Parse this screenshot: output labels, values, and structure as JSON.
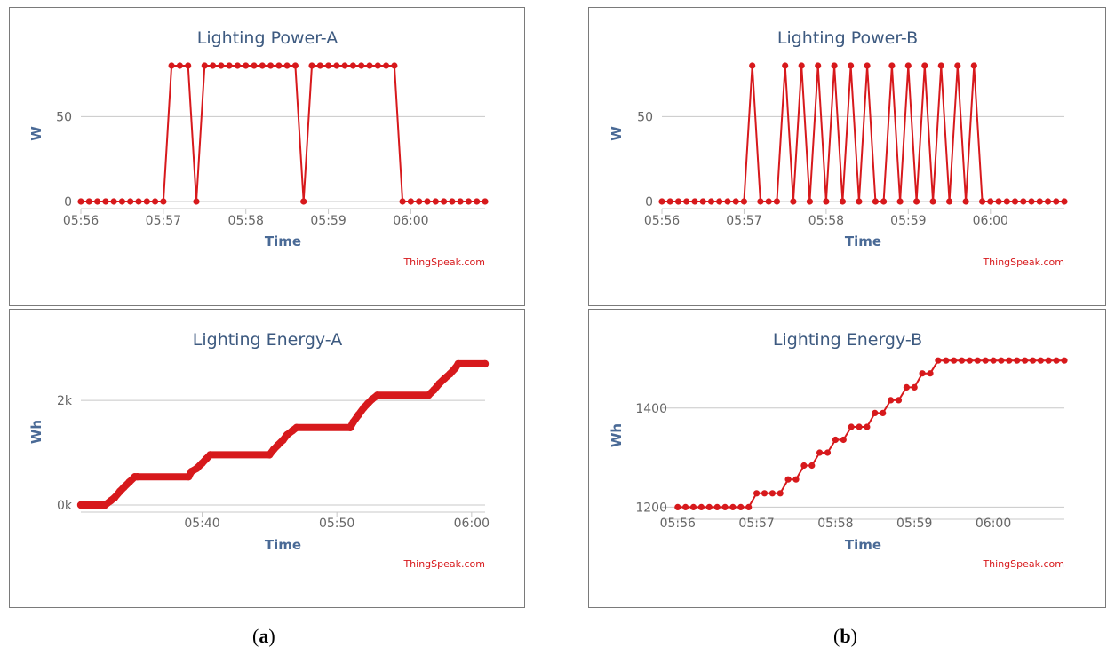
{
  "captions": {
    "a_open": "(",
    "a_letter": "a",
    "a_close": ")",
    "b_open": "(",
    "b_letter": "b",
    "b_close": ")"
  },
  "colors": {
    "series": "#d7191c",
    "grid": "#c8c8c8",
    "title": "#3d5a80"
  },
  "chart_data": [
    {
      "id": "power-a",
      "type": "line",
      "title": "Lighting Power-A",
      "xlabel": "Time",
      "ylabel": "W",
      "credit": "ThingSpeak.com",
      "xlim": [
        0,
        294
      ],
      "ylim": [
        0,
        80
      ],
      "xticks": [
        {
          "v": 0,
          "label": "05:56"
        },
        {
          "v": 60,
          "label": "05:57"
        },
        {
          "v": 120,
          "label": "05:58"
        },
        {
          "v": 180,
          "label": "05:59"
        },
        {
          "v": 240,
          "label": "06:00"
        }
      ],
      "yticks": [
        {
          "v": 0,
          "label": "0"
        },
        {
          "v": 50,
          "label": "50"
        }
      ],
      "x": [
        0,
        6,
        12,
        18,
        24,
        30,
        36,
        42,
        48,
        54,
        60,
        66,
        72,
        78,
        84,
        90,
        96,
        102,
        108,
        114,
        120,
        126,
        132,
        138,
        144,
        150,
        156,
        162,
        168,
        174,
        180,
        186,
        192,
        198,
        204,
        210,
        216,
        222,
        228,
        234,
        240,
        246,
        252,
        258,
        264,
        270,
        276,
        282,
        288,
        294
      ],
      "series": [
        {
          "name": "Lighting Power-A",
          "values": [
            0,
            0,
            0,
            0,
            0,
            0,
            0,
            0,
            0,
            0,
            0,
            80,
            80,
            80,
            0,
            80,
            80,
            80,
            80,
            80,
            80,
            80,
            80,
            80,
            80,
            80,
            80,
            0,
            80,
            80,
            80,
            80,
            80,
            80,
            80,
            80,
            80,
            80,
            80,
            0,
            0,
            0,
            0,
            0,
            0,
            0,
            0,
            0,
            0,
            0
          ]
        }
      ]
    },
    {
      "id": "power-b",
      "type": "line",
      "title": "Lighting Power-B",
      "xlabel": "Time",
      "ylabel": "W",
      "credit": "ThingSpeak.com",
      "xlim": [
        0,
        294
      ],
      "ylim": [
        0,
        80
      ],
      "xticks": [
        {
          "v": 0,
          "label": "05:56"
        },
        {
          "v": 60,
          "label": "05:57"
        },
        {
          "v": 120,
          "label": "05:58"
        },
        {
          "v": 180,
          "label": "05:59"
        },
        {
          "v": 240,
          "label": "06:00"
        }
      ],
      "yticks": [
        {
          "v": 0,
          "label": "0"
        },
        {
          "v": 50,
          "label": "50"
        }
      ],
      "x": [
        0,
        6,
        12,
        18,
        24,
        30,
        36,
        42,
        48,
        54,
        60,
        66,
        72,
        78,
        84,
        90,
        96,
        102,
        108,
        114,
        120,
        126,
        132,
        138,
        144,
        150,
        156,
        162,
        168,
        174,
        180,
        186,
        192,
        198,
        204,
        210,
        216,
        222,
        228,
        234,
        240,
        246,
        252,
        258,
        264,
        270,
        276,
        282,
        288,
        294
      ],
      "series": [
        {
          "name": "Lighting Power-B",
          "values": [
            0,
            0,
            0,
            0,
            0,
            0,
            0,
            0,
            0,
            0,
            0,
            80,
            0,
            0,
            0,
            80,
            0,
            80,
            0,
            80,
            0,
            80,
            0,
            80,
            0,
            80,
            0,
            0,
            80,
            0,
            80,
            0,
            80,
            0,
            80,
            0,
            80,
            0,
            80,
            0,
            0,
            0,
            0,
            0,
            0,
            0,
            0,
            0,
            0,
            0
          ]
        }
      ]
    },
    {
      "id": "energy-a",
      "type": "line",
      "title": "Lighting Energy-A",
      "xlabel": "Time",
      "ylabel": "Wh",
      "credit": "ThingSpeak.com",
      "xlim": [
        31,
        61
      ],
      "ylim": [
        0,
        2800
      ],
      "xticks": [
        {
          "v": 40,
          "label": "05:40"
        },
        {
          "v": 50,
          "label": "05:50"
        },
        {
          "v": 60,
          "label": "06:00"
        }
      ],
      "yticks": [
        {
          "v": 0,
          "label": "0k"
        },
        {
          "v": 2000,
          "label": "2k"
        }
      ],
      "x": [
        31,
        32.8,
        33.2,
        33.5,
        33.9,
        34.2,
        34.6,
        35,
        35.2,
        39,
        39.2,
        39.6,
        40,
        40.3,
        40.6,
        45,
        45.3,
        45.6,
        46,
        46.3,
        46.7,
        47,
        51,
        51.2,
        51.6,
        52,
        52.3,
        52.6,
        53,
        56.8,
        57.2,
        57.6,
        58,
        58.4,
        58.8,
        59,
        61
      ],
      "series": [
        {
          "name": "Lighting Energy-A",
          "values": [
            0,
            0,
            80,
            140,
            260,
            340,
            440,
            540,
            540,
            540,
            640,
            700,
            800,
            880,
            960,
            960,
            1060,
            1140,
            1240,
            1340,
            1420,
            1480,
            1480,
            1580,
            1720,
            1860,
            1940,
            2020,
            2100,
            2100,
            2200,
            2320,
            2420,
            2510,
            2620,
            2700,
            2700
          ]
        }
      ]
    },
    {
      "id": "energy-b",
      "type": "line",
      "title": "Lighting Energy-B",
      "xlabel": "Time",
      "ylabel": "Wh",
      "credit": "ThingSpeak.com",
      "xlim": [
        -12,
        294
      ],
      "ylim": [
        1190,
        1500
      ],
      "xticks": [
        {
          "v": 0,
          "label": "05:56"
        },
        {
          "v": 60,
          "label": "05:57"
        },
        {
          "v": 120,
          "label": "05:58"
        },
        {
          "v": 180,
          "label": "05:59"
        },
        {
          "v": 240,
          "label": "06:00"
        }
      ],
      "yticks": [
        {
          "v": 1200,
          "label": "1200"
        },
        {
          "v": 1400,
          "label": "1400"
        }
      ],
      "x": [
        0,
        6,
        12,
        18,
        24,
        30,
        36,
        42,
        48,
        54,
        60,
        66,
        72,
        78,
        84,
        90,
        96,
        102,
        108,
        114,
        120,
        126,
        132,
        138,
        144,
        150,
        156,
        162,
        168,
        174,
        180,
        186,
        192,
        198,
        204,
        210,
        216,
        222,
        228,
        234,
        240,
        246,
        252,
        258,
        264,
        270,
        276,
        282,
        288,
        294
      ],
      "series": [
        {
          "name": "Lighting Energy-B",
          "values": [
            1200,
            1200,
            1200,
            1200,
            1200,
            1200,
            1200,
            1200,
            1200,
            1200,
            1228,
            1228,
            1228,
            1228,
            1256,
            1256,
            1284,
            1284,
            1310,
            1310,
            1336,
            1336,
            1362,
            1362,
            1362,
            1390,
            1390,
            1416,
            1416,
            1442,
            1442,
            1470,
            1470,
            1496,
            1496,
            1496,
            1496,
            1496,
            1496,
            1496,
            1496,
            1496,
            1496,
            1496,
            1496,
            1496,
            1496,
            1496,
            1496,
            1496
          ]
        }
      ]
    }
  ]
}
